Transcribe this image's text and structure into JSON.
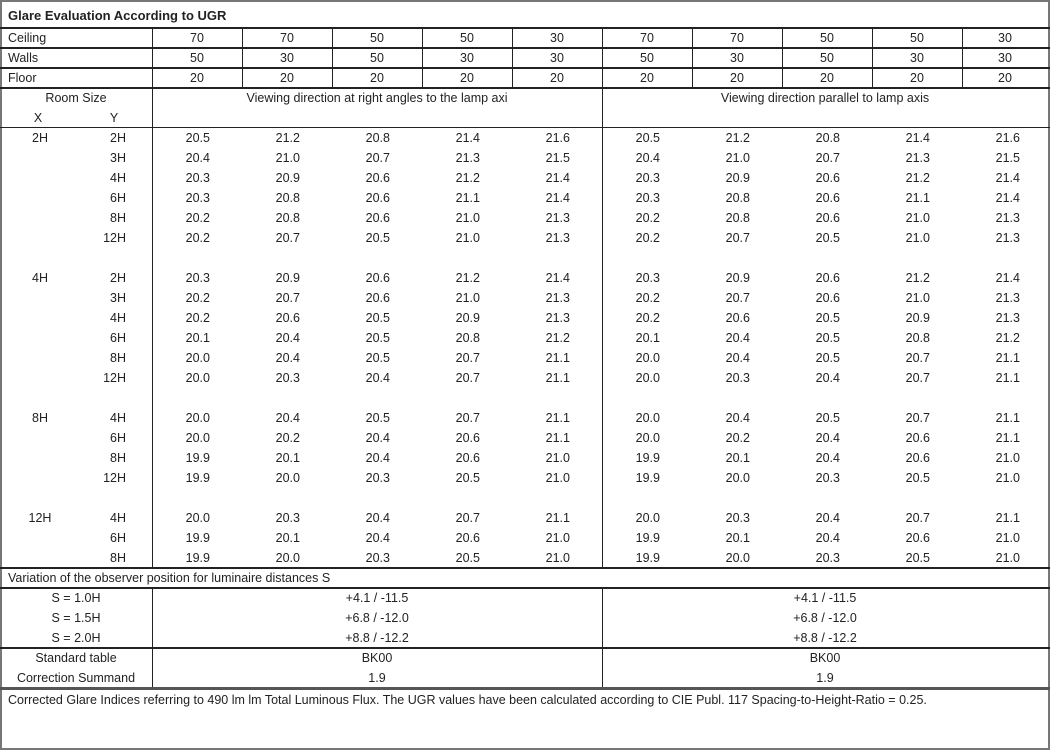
{
  "title": "Glare Evaluation According to UGR",
  "reflectances": {
    "ceiling": {
      "label": "Ceiling",
      "values": [
        "70",
        "70",
        "50",
        "50",
        "30",
        "70",
        "70",
        "50",
        "50",
        "30"
      ]
    },
    "walls": {
      "label": "Walls",
      "values": [
        "50",
        "30",
        "50",
        "30",
        "30",
        "50",
        "30",
        "50",
        "30",
        "30"
      ]
    },
    "floor": {
      "label": "Floor",
      "values": [
        "20",
        "20",
        "20",
        "20",
        "20",
        "20",
        "20",
        "20",
        "20",
        "20"
      ]
    }
  },
  "room_size_label": "Room Size",
  "x_label": "X",
  "y_label": "Y",
  "direction_right_angles": "Viewing direction at right angles to the lamp axi",
  "direction_parallel": "Viewing direction parallel to lamp axis",
  "groups": [
    {
      "x": "2H",
      "rows": [
        {
          "y": "2H",
          "values": [
            "20.5",
            "21.2",
            "20.8",
            "21.4",
            "21.6",
            "20.5",
            "21.2",
            "20.8",
            "21.4",
            "21.6"
          ]
        },
        {
          "y": "3H",
          "values": [
            "20.4",
            "21.0",
            "20.7",
            "21.3",
            "21.5",
            "20.4",
            "21.0",
            "20.7",
            "21.3",
            "21.5"
          ]
        },
        {
          "y": "4H",
          "values": [
            "20.3",
            "20.9",
            "20.6",
            "21.2",
            "21.4",
            "20.3",
            "20.9",
            "20.6",
            "21.2",
            "21.4"
          ]
        },
        {
          "y": "6H",
          "values": [
            "20.3",
            "20.8",
            "20.6",
            "21.1",
            "21.4",
            "20.3",
            "20.8",
            "20.6",
            "21.1",
            "21.4"
          ]
        },
        {
          "y": "8H",
          "values": [
            "20.2",
            "20.8",
            "20.6",
            "21.0",
            "21.3",
            "20.2",
            "20.8",
            "20.6",
            "21.0",
            "21.3"
          ]
        },
        {
          "y": "12H",
          "values": [
            "20.2",
            "20.7",
            "20.5",
            "21.0",
            "21.3",
            "20.2",
            "20.7",
            "20.5",
            "21.0",
            "21.3"
          ]
        }
      ]
    },
    {
      "x": "4H",
      "rows": [
        {
          "y": "2H",
          "values": [
            "20.3",
            "20.9",
            "20.6",
            "21.2",
            "21.4",
            "20.3",
            "20.9",
            "20.6",
            "21.2",
            "21.4"
          ]
        },
        {
          "y": "3H",
          "values": [
            "20.2",
            "20.7",
            "20.6",
            "21.0",
            "21.3",
            "20.2",
            "20.7",
            "20.6",
            "21.0",
            "21.3"
          ]
        },
        {
          "y": "4H",
          "values": [
            "20.2",
            "20.6",
            "20.5",
            "20.9",
            "21.3",
            "20.2",
            "20.6",
            "20.5",
            "20.9",
            "21.3"
          ]
        },
        {
          "y": "6H",
          "values": [
            "20.1",
            "20.4",
            "20.5",
            "20.8",
            "21.2",
            "20.1",
            "20.4",
            "20.5",
            "20.8",
            "21.2"
          ]
        },
        {
          "y": "8H",
          "values": [
            "20.0",
            "20.4",
            "20.5",
            "20.7",
            "21.1",
            "20.0",
            "20.4",
            "20.5",
            "20.7",
            "21.1"
          ]
        },
        {
          "y": "12H",
          "values": [
            "20.0",
            "20.3",
            "20.4",
            "20.7",
            "21.1",
            "20.0",
            "20.3",
            "20.4",
            "20.7",
            "21.1"
          ]
        }
      ]
    },
    {
      "x": "8H",
      "rows": [
        {
          "y": "4H",
          "values": [
            "20.0",
            "20.4",
            "20.5",
            "20.7",
            "21.1",
            "20.0",
            "20.4",
            "20.5",
            "20.7",
            "21.1"
          ]
        },
        {
          "y": "6H",
          "values": [
            "20.0",
            "20.2",
            "20.4",
            "20.6",
            "21.1",
            "20.0",
            "20.2",
            "20.4",
            "20.6",
            "21.1"
          ]
        },
        {
          "y": "8H",
          "values": [
            "19.9",
            "20.1",
            "20.4",
            "20.6",
            "21.0",
            "19.9",
            "20.1",
            "20.4",
            "20.6",
            "21.0"
          ]
        },
        {
          "y": "12H",
          "values": [
            "19.9",
            "20.0",
            "20.3",
            "20.5",
            "21.0",
            "19.9",
            "20.0",
            "20.3",
            "20.5",
            "21.0"
          ]
        }
      ]
    },
    {
      "x": "12H",
      "rows": [
        {
          "y": "4H",
          "values": [
            "20.0",
            "20.3",
            "20.4",
            "20.7",
            "21.1",
            "20.0",
            "20.3",
            "20.4",
            "20.7",
            "21.1"
          ]
        },
        {
          "y": "6H",
          "values": [
            "19.9",
            "20.1",
            "20.4",
            "20.6",
            "21.0",
            "19.9",
            "20.1",
            "20.4",
            "20.6",
            "21.0"
          ]
        },
        {
          "y": "8H",
          "values": [
            "19.9",
            "20.0",
            "20.3",
            "20.5",
            "21.0",
            "19.9",
            "20.0",
            "20.3",
            "20.5",
            "21.0"
          ]
        }
      ]
    }
  ],
  "variation_label": "Variation of the observer position for luminaire distances S",
  "variations": [
    {
      "label": "S = 1.0H",
      "right_angles": "+4.1 / -11.5",
      "parallel": "+4.1 / -11.5"
    },
    {
      "label": "S = 1.5H",
      "right_angles": "+6.8 / -12.0",
      "parallel": "+6.8 / -12.0"
    },
    {
      "label": "S = 2.0H",
      "right_angles": "+8.8 / -12.2",
      "parallel": "+8.8 / -12.2"
    }
  ],
  "standard_table": {
    "label": "Standard table",
    "right_angles": "BK00",
    "parallel": "BK00"
  },
  "correction_summand": {
    "label": "Correction Summand",
    "right_angles": "1.9",
    "parallel": "1.9"
  },
  "footnote": "Corrected Glare Indices referring to 490 lm lm Total Luminous Flux. The UGR values have been calculated according to CIE Publ. 117    Spacing-to-Height-Ratio = 0.25."
}
